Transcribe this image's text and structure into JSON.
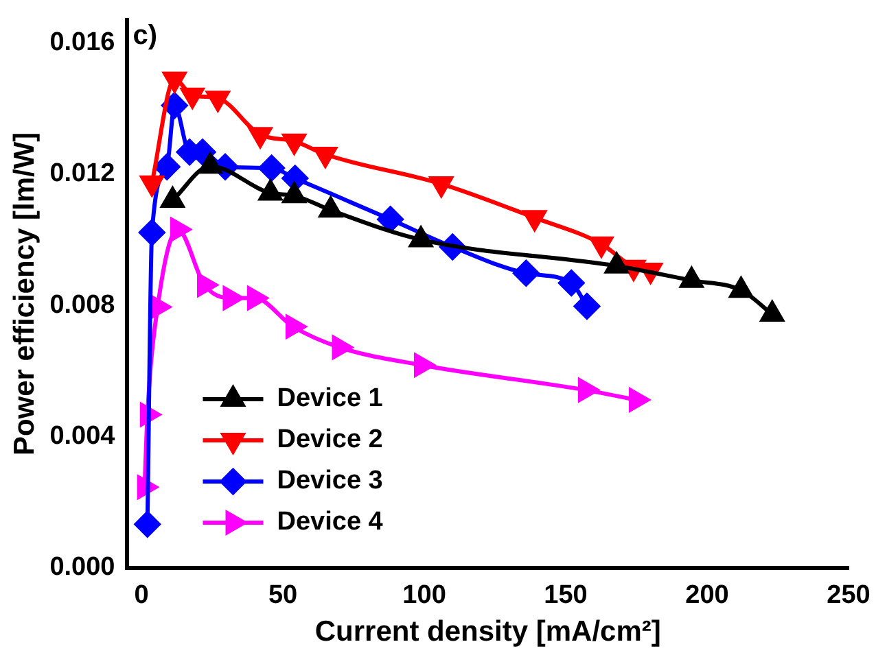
{
  "chart_data": {
    "type": "line",
    "xlabel": "Current density [mA/cm²]",
    "ylabel": "Power efficiency [lm/W]",
    "annotations": [
      "c)"
    ],
    "xlim": [
      -5,
      250
    ],
    "xticks": [
      0,
      50,
      100,
      150,
      200,
      250
    ],
    "ylim": [
      0,
      0.0167
    ],
    "yticks": [
      {
        "value": 0,
        "label": "0.000"
      },
      {
        "value": 0.004,
        "label": "0.004"
      },
      {
        "value": 0.008,
        "label": "0.008"
      },
      {
        "value": 0.012,
        "label": "0.012"
      },
      {
        "value": 0.016,
        "label": "0.016"
      }
    ],
    "grid": false,
    "legend": "bottom left",
    "line_style": "solid",
    "series": [
      {
        "name": "Device 1",
        "color": "#000000",
        "marker": "triangle",
        "x": [
          11,
          24.3,
          45.6,
          54,
          66.9,
          98.8,
          168,
          194.5,
          212,
          223
        ],
        "values": [
          0.0112,
          0.01224,
          0.01142,
          0.01134,
          0.0109,
          0.01,
          0.0092,
          0.00876,
          0.00846,
          0.00773
        ]
      },
      {
        "name": "Device 2",
        "color": "#ff0000",
        "marker": "triangle-down",
        "x": [
          3.7,
          11.7,
          18,
          27,
          42,
          54,
          65,
          106,
          139,
          162.6,
          174,
          180
        ],
        "values": [
          0.01173,
          0.01489,
          0.0144,
          0.01431,
          0.0132,
          0.013,
          0.0126,
          0.0117,
          0.01067,
          0.00987,
          0.00916,
          0.00907
        ]
      },
      {
        "name": "Device 3",
        "color": "#0000ff",
        "marker": "diamond",
        "x": [
          2.1,
          3.7,
          9,
          11.7,
          17,
          21.6,
          29.6,
          46,
          54.3,
          88,
          110,
          136,
          152,
          157.5
        ],
        "values": [
          0.00133,
          0.01022,
          0.01222,
          0.01409,
          0.01267,
          0.01267,
          0.01222,
          0.01218,
          0.01187,
          0.01062,
          0.00978,
          0.00898,
          0.00868,
          0.00797
        ]
      },
      {
        "name": "Device 4",
        "color": "#ff00ff",
        "marker": "triangle-right",
        "x": [
          1.1,
          2.1,
          5.7,
          12.8,
          22.3,
          31.4,
          40,
          53.6,
          70,
          99,
          157,
          175
        ],
        "values": [
          0.00246,
          0.00467,
          0.00795,
          0.01031,
          0.00862,
          0.00822,
          0.00822,
          0.00735,
          0.00672,
          0.00618,
          0.00542,
          0.00512
        ]
      }
    ]
  }
}
